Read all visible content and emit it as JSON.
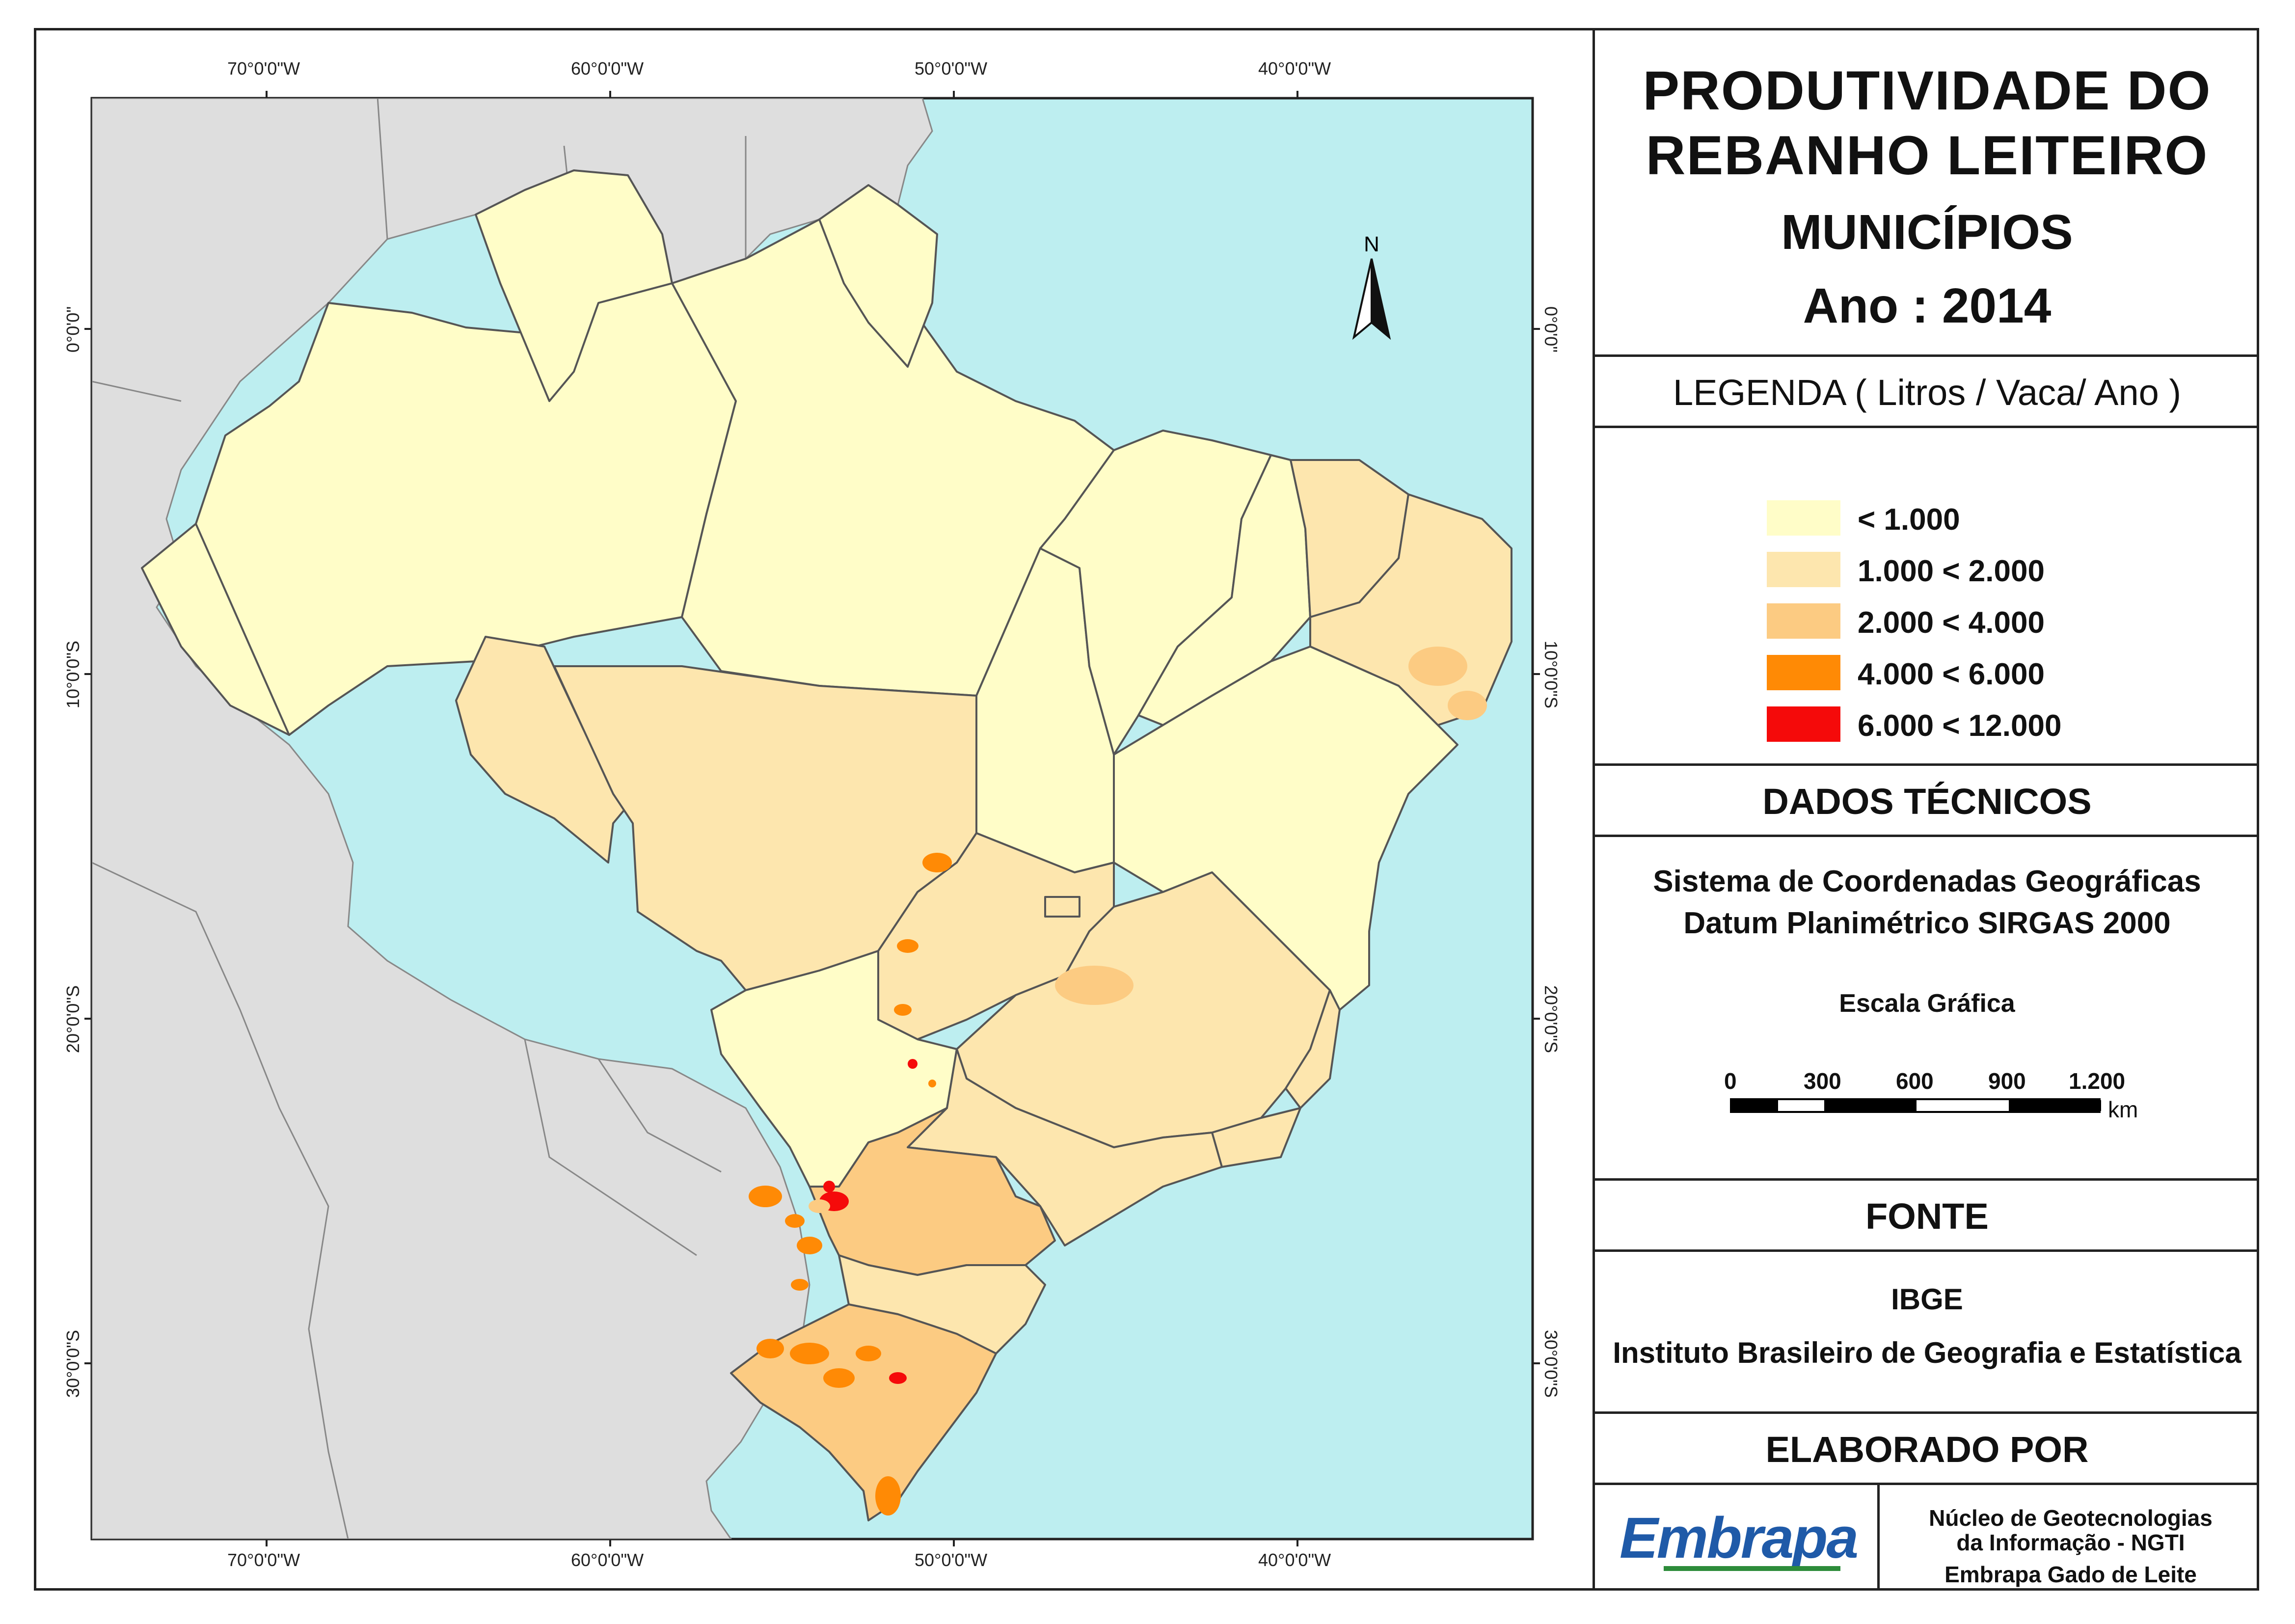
{
  "title": {
    "line1": "PRODUTIVIDADE DO",
    "line2": "REBANHO LEITEIRO",
    "subtitle": "MUNICÍPIOS",
    "year": "Ano : 2014"
  },
  "legend": {
    "header": "LEGENDA ( Litros / Vaca/ Ano )",
    "classes": [
      {
        "label": "< 1.000",
        "color": "#FFFDC8"
      },
      {
        "label": "1.000 < 2.000",
        "color": "#FDE6AE"
      },
      {
        "label": "2.000 < 4.000",
        "color": "#FCCB82"
      },
      {
        "label": "4.000 < 6.000",
        "color": "#FF8A05"
      },
      {
        "label": "6.000 < 12.000",
        "color": "#F50A0A"
      }
    ]
  },
  "technical": {
    "header": "DADOS TÉCNICOS",
    "line1": "Sistema de Coordenadas Geográficas",
    "line2": "Datum Planimétrico SIRGAS 2000",
    "scale_title": "Escala Gráfica",
    "scale_ticks": [
      "0",
      "300",
      "600",
      "900",
      "1.200"
    ],
    "scale_unit": "km"
  },
  "source": {
    "header": "FONTE",
    "line1": "IBGE",
    "line2": "Instituto Brasileiro de Geografia e Estatística"
  },
  "credits": {
    "header": "ELABORADO POR",
    "logo": "Embrapa",
    "line1": "Núcleo de Geotecnologias",
    "line2": "da Informação - NGTI",
    "line3": "Embrapa Gado de Leite"
  },
  "north_arrow": "N",
  "grid": {
    "lon_labels": [
      "70°0'0\"W",
      "60°0'0\"W",
      "50°0'0\"W",
      "40°0'0\"W"
    ],
    "lat_labels": [
      "0°0'0\"",
      "10°0'0\"S",
      "20°0'0\"S",
      "30°0'0\"S"
    ]
  },
  "colors": {
    "ocean": "#BDEEF0",
    "land_other": "#DEDEDE",
    "border": "#555555"
  }
}
